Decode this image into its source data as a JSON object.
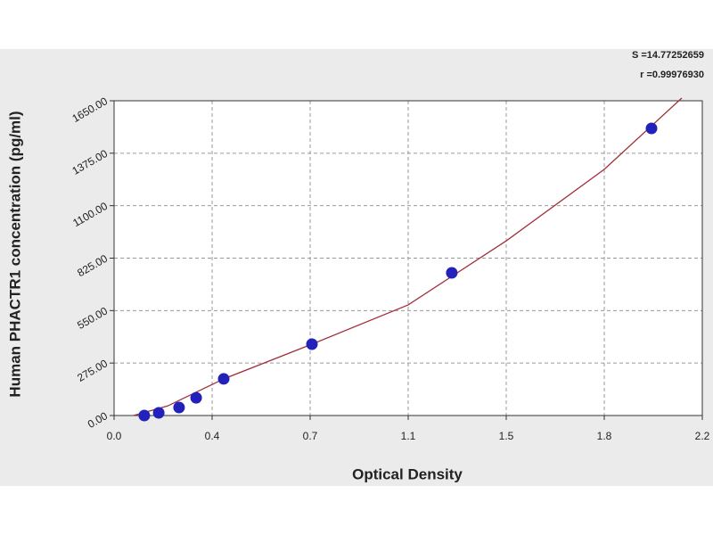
{
  "chart_data": {
    "type": "scatter",
    "x_label": "Optical Density",
    "y_label": "Human PHACTR1 concentration (pg/ml)",
    "annotations": [
      "S =14.77252659",
      "r =0.99976930"
    ],
    "x": [
      0.113,
      0.167,
      0.243,
      0.307,
      0.41,
      0.74,
      1.263,
      2.01
    ],
    "values": [
      0,
      14,
      42,
      93,
      192,
      374,
      748,
      1505
    ],
    "color": "#2222bb",
    "curve": {
      "color": "#a0303a",
      "x": [
        0.073,
        0.2,
        0.41,
        0.74,
        1.1,
        1.467,
        1.833,
        2.123
      ],
      "values": [
        0,
        50,
        192,
        374,
        580,
        916,
        1290,
        1664
      ]
    },
    "xlim": [
      0,
      2.2
    ],
    "ylim": [
      0,
      1650
    ],
    "xticks": [
      {
        "value": 0,
        "label": "0.0"
      },
      {
        "value": 0.3667,
        "label": "0.4"
      },
      {
        "value": 0.7333,
        "label": "0.7"
      },
      {
        "value": 1.1,
        "label": "1.1"
      },
      {
        "value": 1.4667,
        "label": "1.5"
      },
      {
        "value": 1.8333,
        "label": "1.8"
      },
      {
        "value": 2.2,
        "label": "2.2"
      }
    ],
    "yticks": [
      {
        "value": 0,
        "label": "0.00"
      },
      {
        "value": 275,
        "label": "275.00"
      },
      {
        "value": 550,
        "label": "550.00"
      },
      {
        "value": 825,
        "label": "825.00"
      },
      {
        "value": 1100,
        "label": "1100.00"
      },
      {
        "value": 1375,
        "label": "1375.00"
      },
      {
        "value": 1650,
        "label": "1650.00"
      }
    ],
    "grid": true
  }
}
